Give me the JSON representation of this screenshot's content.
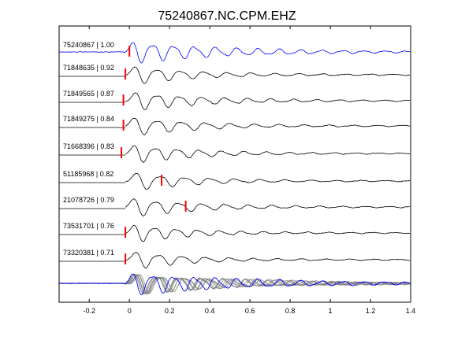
{
  "chart_data": {
    "type": "line",
    "title": "75240867.NC.CPM.EHZ",
    "xlabel": "",
    "ylabel": "",
    "xlim": [
      -0.35,
      1.4
    ],
    "x_ticks": [
      "-0.2",
      "0",
      "0.2",
      "0.4",
      "0.6",
      "0.8",
      "1",
      "1.2",
      "1.4"
    ],
    "x_tick_values": [
      -0.2,
      0,
      0.2,
      0.4,
      0.6,
      0.8,
      1.0,
      1.2,
      1.4
    ],
    "grid": false,
    "legend": "none",
    "colors": {
      "reference": "#0000ff",
      "trace": "#000000",
      "pick": "#ff0000",
      "stack": "#808080",
      "axes": "#000000"
    },
    "series": [
      {
        "label": "75240867 | 1.00",
        "pick_time": 0.0,
        "reference": true
      },
      {
        "label": "71848635 | 0.92",
        "pick_time": -0.02
      },
      {
        "label": "71849565 | 0.87",
        "pick_time": -0.03
      },
      {
        "label": "71849275 | 0.84",
        "pick_time": -0.03
      },
      {
        "label": "71668396 | 0.83",
        "pick_time": -0.04
      },
      {
        "label": "51185968 | 0.82",
        "pick_time": 0.16
      },
      {
        "label": "21078726 | 0.79",
        "pick_time": 0.28
      },
      {
        "label": "73531701 | 0.76",
        "pick_time": -0.02
      },
      {
        "label": "73320381 | 0.71",
        "pick_time": -0.02
      }
    ],
    "stack": {
      "description_shown": false
    }
  }
}
